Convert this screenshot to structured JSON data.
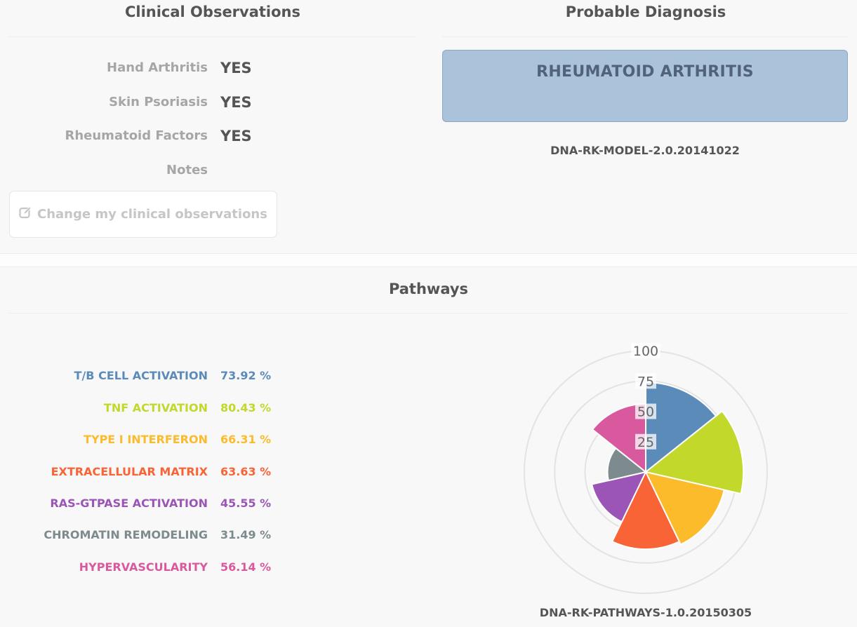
{
  "clinical": {
    "title": "Clinical Observations",
    "rows": [
      {
        "label": "Hand Arthritis",
        "value": "YES"
      },
      {
        "label": "Skin Psoriasis",
        "value": "YES"
      },
      {
        "label": "Rheumatoid Factors",
        "value": "YES"
      },
      {
        "label": "Notes",
        "value": ""
      }
    ],
    "change_button": {
      "label": "Change my clinical observations",
      "icon": "edit-icon"
    }
  },
  "diagnosis": {
    "title": "Probable Diagnosis",
    "result": "RHEUMATOID ARTHRITIS",
    "model": "DNA-RK-MODEL-2.0.20141022",
    "box_color": "#abc2db"
  },
  "pathways": {
    "title": "Pathways",
    "model": "DNA-RK-PATHWAYS-1.0.20150305",
    "items": [
      {
        "label": "T/B CELL ACTIVATION",
        "value": "73.92 %",
        "color": "#5b8bb8"
      },
      {
        "label": "TNF ACTIVATION",
        "value": "80.43 %",
        "color": "#c2d82a"
      },
      {
        "label": "TYPE I INTERFERON",
        "value": "66.31 %",
        "color": "#fbbb2a"
      },
      {
        "label": "EXTRACELLULAR MATRIX",
        "value": "63.63 %",
        "color": "#f86436"
      },
      {
        "label": "RAS-GTPASE ACTIVATION",
        "value": "45.55 %",
        "color": "#9a55b6"
      },
      {
        "label": "CHROMATIN REMODELING",
        "value": "31.49 %",
        "color": "#7e8b8e"
      },
      {
        "label": "HYPERVASCULARITY",
        "value": "56.14 %",
        "color": "#d9599f"
      }
    ]
  },
  "chart_data": {
    "type": "polar-area",
    "categories": [
      "T/B CELL ACTIVATION",
      "TNF ACTIVATION",
      "TYPE I INTERFERON",
      "EXTRACELLULAR MATRIX",
      "RAS-GTPASE ACTIVATION",
      "CHROMATIN REMODELING",
      "HYPERVASCULARITY"
    ],
    "values": [
      73.92,
      80.43,
      66.31,
      63.63,
      45.55,
      31.49,
      56.14
    ],
    "colors": [
      "#5b8bb8",
      "#c2d82a",
      "#fbbb2a",
      "#f86436",
      "#9a55b6",
      "#7e8b8e",
      "#d9599f"
    ],
    "ticks": [
      "25",
      "50",
      "75",
      "100"
    ],
    "rlim": [
      0,
      100
    ],
    "grid": true
  }
}
